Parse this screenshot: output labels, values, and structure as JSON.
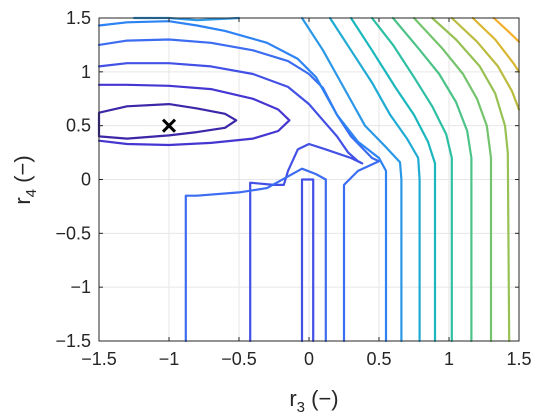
{
  "chart_data": {
    "type": "contour",
    "title": "",
    "xlabel": {
      "main": "r",
      "sub": "3",
      "unit": " (−)"
    },
    "ylabel": {
      "main": "r",
      "sub": "4",
      "unit": " (−)"
    },
    "xlim": [
      -1.5,
      1.5
    ],
    "ylim": [
      -1.5,
      1.5
    ],
    "xticks": [
      -1.5,
      -1,
      -0.5,
      0,
      0.5,
      1,
      1.5
    ],
    "yticks": [
      -1.5,
      -1,
      -0.5,
      0,
      0.5,
      1,
      1.5
    ],
    "xtick_labels": [
      "−1.5",
      "−1",
      "−0.5",
      "0",
      "0.5",
      "1",
      "1.5"
    ],
    "ytick_labels": [
      "−1.5",
      "−1",
      "−0.5",
      "0",
      "0.5",
      "1",
      "1.5"
    ],
    "grid": true,
    "colormap": "parula",
    "minimum_marker": {
      "x": -1,
      "y": 0.5,
      "symbol": "×",
      "color": "#000000"
    },
    "levels": [
      {
        "color": "#3e26a8",
        "segments": [
          [
            [
              -1.5,
              0.4
            ],
            [
              -1.5,
              0.62
            ],
            [
              -1.3,
              0.68
            ],
            [
              -1.0,
              0.7
            ],
            [
              -0.8,
              0.66
            ],
            [
              -0.6,
              0.61
            ],
            [
              -0.52,
              0.55
            ],
            [
              -0.6,
              0.48
            ],
            [
              -0.8,
              0.44
            ],
            [
              -1.0,
              0.41
            ],
            [
              -1.3,
              0.38
            ],
            [
              -1.5,
              0.4
            ]
          ]
        ]
      },
      {
        "color": "#4536d2",
        "segments": [
          [
            [
              -1.5,
              0.36
            ],
            [
              -1.3,
              0.33
            ],
            [
              -1.0,
              0.32
            ],
            [
              -0.7,
              0.34
            ],
            [
              -0.4,
              0.38
            ],
            [
              -0.22,
              0.45
            ],
            [
              -0.14,
              0.55
            ],
            [
              -0.22,
              0.65
            ],
            [
              -0.4,
              0.75
            ],
            [
              -0.7,
              0.84
            ],
            [
              -1.0,
              0.87
            ],
            [
              -1.3,
              0.88
            ],
            [
              -1.5,
              0.88
            ]
          ]
        ]
      },
      {
        "color": "#4250e6",
        "segments": [
          [
            [
              -1.5,
              1.05
            ],
            [
              -1.3,
              1.08
            ],
            [
              -1.0,
              1.08
            ],
            [
              -0.7,
              1.05
            ],
            [
              -0.4,
              0.98
            ],
            [
              -0.15,
              0.86
            ],
            [
              0.0,
              0.7
            ],
            [
              0.1,
              0.55
            ],
            [
              0.2,
              0.4
            ],
            [
              0.28,
              0.25
            ],
            [
              0.35,
              0.17
            ],
            [
              0.38,
              0.15
            ],
            [
              0.3,
              0.2
            ],
            [
              0.12,
              0.28
            ],
            [
              0.0,
              0.33
            ],
            [
              -0.08,
              0.28
            ],
            [
              -0.15,
              0.08
            ],
            [
              -0.18,
              -0.05
            ],
            [
              -0.25,
              -0.05
            ],
            [
              -0.42,
              -0.03
            ],
            [
              -0.42,
              -1.5
            ]
          ],
          [
            [
              -0.05,
              -1.5
            ],
            [
              -0.05,
              0.0
            ],
            [
              0.03,
              0.0
            ],
            [
              0.03,
              -1.5
            ]
          ]
        ]
      },
      {
        "color": "#3b6cf1",
        "segments": [
          [
            [
              -1.5,
              1.25
            ],
            [
              -1.3,
              1.29
            ],
            [
              -1.0,
              1.3
            ],
            [
              -0.7,
              1.27
            ],
            [
              -0.4,
              1.2
            ],
            [
              -0.15,
              1.1
            ],
            [
              0.0,
              0.98
            ],
            [
              0.1,
              0.85
            ],
            [
              0.2,
              0.6
            ],
            [
              0.3,
              0.4
            ],
            [
              0.45,
              0.2
            ],
            [
              0.5,
              0.17
            ],
            [
              0.35,
              0.08
            ],
            [
              0.25,
              -0.05
            ],
            [
              0.25,
              -1.5
            ]
          ],
          [
            [
              -0.88,
              -1.5
            ],
            [
              -0.88,
              -0.15
            ],
            [
              -0.8,
              -0.15
            ],
            [
              -0.5,
              -0.12
            ],
            [
              -0.3,
              -0.08
            ],
            [
              -0.05,
              0.1
            ],
            [
              0.05,
              0.05
            ],
            [
              0.12,
              0.0
            ],
            [
              0.12,
              -1.5
            ]
          ]
        ]
      },
      {
        "color": "#2d83f3",
        "segments": [
          [
            [
              -1.5,
              1.43
            ],
            [
              -1.3,
              1.46
            ],
            [
              -1.0,
              1.47
            ],
            [
              -0.8,
              1.43
            ],
            [
              -0.6,
              1.38
            ],
            [
              -0.3,
              1.27
            ],
            [
              -0.08,
              1.12
            ],
            [
              0.05,
              0.95
            ],
            [
              0.2,
              0.6
            ],
            [
              0.35,
              0.35
            ],
            [
              0.5,
              0.2
            ],
            [
              0.55,
              0.08
            ],
            [
              0.55,
              -1.5
            ]
          ]
        ]
      },
      {
        "color": "#2a98e6",
        "segments": [
          [
            [
              -1.25,
              1.5
            ],
            [
              -1.0,
              1.5
            ],
            [
              -0.8,
              1.48
            ],
            [
              -0.5,
              1.5
            ]
          ],
          [
            [
              -0.05,
              1.5
            ],
            [
              0.1,
              1.2
            ],
            [
              0.25,
              0.85
            ],
            [
              0.4,
              0.5
            ],
            [
              0.55,
              0.3
            ],
            [
              0.65,
              0.16
            ],
            [
              0.66,
              0.0
            ],
            [
              0.66,
              -1.5
            ]
          ]
        ]
      },
      {
        "color": "#1fabd4",
        "segments": [
          [
            [
              0.15,
              1.5
            ],
            [
              0.3,
              1.2
            ],
            [
              0.45,
              0.9
            ],
            [
              0.58,
              0.6
            ],
            [
              0.7,
              0.38
            ],
            [
              0.78,
              0.2
            ],
            [
              0.79,
              0.0
            ],
            [
              0.79,
              -1.5
            ]
          ]
        ]
      },
      {
        "color": "#1ab7bd",
        "segments": [
          [
            [
              0.3,
              1.5
            ],
            [
              0.45,
              1.2
            ],
            [
              0.62,
              0.85
            ],
            [
              0.75,
              0.6
            ],
            [
              0.85,
              0.35
            ],
            [
              0.9,
              0.15
            ],
            [
              0.9,
              -1.5
            ]
          ]
        ]
      },
      {
        "color": "#2dbfa3",
        "segments": [
          [
            [
              0.45,
              1.5
            ],
            [
              0.6,
              1.25
            ],
            [
              0.75,
              0.95
            ],
            [
              0.88,
              0.68
            ],
            [
              0.98,
              0.42
            ],
            [
              1.02,
              0.2
            ],
            [
              1.02,
              -1.5
            ]
          ]
        ]
      },
      {
        "color": "#4cc389",
        "segments": [
          [
            [
              0.6,
              1.5
            ],
            [
              0.78,
              1.22
            ],
            [
              0.93,
              0.98
            ],
            [
              1.05,
              0.72
            ],
            [
              1.13,
              0.45
            ],
            [
              1.16,
              0.2
            ],
            [
              1.16,
              -1.5
            ]
          ]
        ]
      },
      {
        "color": "#73c46d",
        "segments": [
          [
            [
              0.75,
              1.5
            ],
            [
              0.95,
              1.22
            ],
            [
              1.1,
              0.98
            ],
            [
              1.2,
              0.75
            ],
            [
              1.27,
              0.5
            ],
            [
              1.3,
              0.2
            ],
            [
              1.3,
              -1.5
            ]
          ]
        ]
      },
      {
        "color": "#98c154",
        "segments": [
          [
            [
              0.88,
              1.5
            ],
            [
              1.05,
              1.3
            ],
            [
              1.22,
              1.05
            ],
            [
              1.33,
              0.8
            ],
            [
              1.4,
              0.5
            ],
            [
              1.42,
              0.25
            ],
            [
              1.43,
              -1.5
            ]
          ]
        ]
      },
      {
        "color": "#bbbc3f",
        "segments": [
          [
            [
              1.02,
              1.5
            ],
            [
              1.2,
              1.28
            ],
            [
              1.35,
              1.05
            ],
            [
              1.45,
              0.82
            ],
            [
              1.5,
              0.65
            ]
          ]
        ]
      },
      {
        "color": "#dab530",
        "segments": [
          [
            [
              1.17,
              1.5
            ],
            [
              1.33,
              1.3
            ],
            [
              1.46,
              1.08
            ],
            [
              1.5,
              1.0
            ]
          ]
        ]
      },
      {
        "color": "#f3af2a",
        "segments": [
          [
            [
              1.32,
              1.5
            ],
            [
              1.42,
              1.38
            ],
            [
              1.5,
              1.28
            ]
          ]
        ]
      }
    ]
  }
}
